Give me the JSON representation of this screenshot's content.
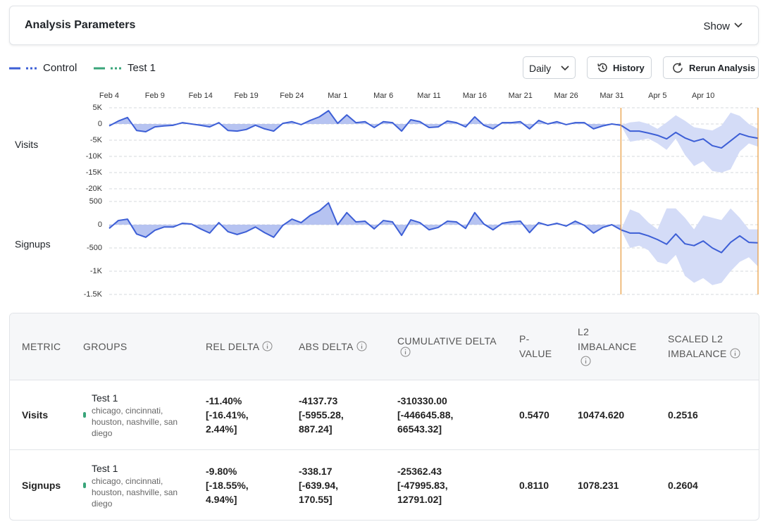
{
  "header": {
    "title": "Analysis Parameters",
    "toggle": "Show"
  },
  "legend": [
    {
      "name": "Control",
      "color": "#3d5fd6"
    },
    {
      "name": "Test 1",
      "color": "#3aa57a"
    }
  ],
  "controls": {
    "granularity": "Daily",
    "history": "History",
    "rerun": "Rerun Analysis"
  },
  "chart_data": [
    {
      "type": "line",
      "title": "Visits",
      "x": [
        "Feb 4",
        null,
        null,
        null,
        null,
        "Feb 9",
        null,
        null,
        null,
        null,
        "Feb 14",
        null,
        null,
        null,
        null,
        "Feb 19",
        null,
        null,
        null,
        null,
        "Feb 24",
        null,
        null,
        null,
        null,
        "Mar 1",
        null,
        null,
        null,
        null,
        "Mar 6",
        null,
        null,
        null,
        null,
        "Mar 11",
        null,
        null,
        null,
        null,
        "Mar 16",
        null,
        null,
        null,
        null,
        "Mar 21",
        null,
        null,
        null,
        null,
        "Mar 26",
        null,
        null,
        null,
        null,
        "Mar 31",
        null,
        null,
        null,
        null,
        "Apr 5",
        null,
        null,
        null,
        null,
        "Apr 10",
        null,
        null,
        null,
        null,
        null,
        null
      ],
      "ylim": [
        -20000,
        5000
      ],
      "yticks": [
        {
          "value": 5000,
          "label": "5K"
        },
        0,
        {
          "value": -5000,
          "label": "-5K"
        },
        {
          "value": -10000,
          "label": "-10K"
        },
        {
          "value": -15000,
          "label": "-15K"
        },
        {
          "value": -20000,
          "label": "-20K"
        }
      ],
      "grid": true,
      "color": "#3d5fd6",
      "area_color": "#a9b9ef",
      "band_color": "#d4dcf7",
      "marker_color": "#e8993a",
      "values": [
        -600,
        900,
        2000,
        -2000,
        -2400,
        -900,
        -600,
        -400,
        400,
        0,
        -400,
        -900,
        400,
        -2000,
        -2200,
        -1700,
        -400,
        -1500,
        -2200,
        200,
        700,
        -200,
        1100,
        2200,
        4100,
        200,
        2800,
        400,
        700,
        -1100,
        700,
        400,
        -2200,
        1300,
        700,
        -1100,
        -900,
        900,
        400,
        -900,
        2200,
        -400,
        -1500,
        400,
        400,
        700,
        -1500,
        1100,
        0,
        700,
        -200,
        400,
        400,
        -1500,
        -600,
        0,
        -400,
        -2200,
        -2200,
        -2800,
        -3500,
        -4600,
        -2600,
        -4300,
        -5400,
        -4600,
        -6700,
        -7400,
        -5200,
        -3000,
        -3900,
        -4400
      ],
      "band_upper": [
        null,
        null,
        null,
        null,
        null,
        null,
        null,
        null,
        null,
        null,
        null,
        null,
        null,
        null,
        null,
        null,
        null,
        null,
        null,
        null,
        null,
        null,
        null,
        null,
        null,
        null,
        null,
        null,
        null,
        null,
        null,
        null,
        null,
        null,
        null,
        null,
        null,
        null,
        null,
        null,
        null,
        null,
        null,
        null,
        null,
        null,
        null,
        null,
        null,
        null,
        null,
        null,
        null,
        null,
        null,
        null,
        -400,
        500,
        800,
        0,
        -1500,
        500,
        2700,
        1000,
        -1000,
        -1500,
        -2000,
        -500,
        3500,
        2500,
        0,
        -1500
      ],
      "band_lower": [
        null,
        null,
        null,
        null,
        null,
        null,
        null,
        null,
        null,
        null,
        null,
        null,
        null,
        null,
        null,
        null,
        null,
        null,
        null,
        null,
        null,
        null,
        null,
        null,
        null,
        null,
        null,
        null,
        null,
        null,
        null,
        null,
        null,
        null,
        null,
        null,
        null,
        null,
        null,
        null,
        null,
        null,
        null,
        null,
        null,
        null,
        null,
        null,
        null,
        null,
        null,
        null,
        null,
        null,
        null,
        null,
        -400,
        -5500,
        -5000,
        -4500,
        -6000,
        -8000,
        -4500,
        -9500,
        -13000,
        -11500,
        -14500,
        -15000,
        -14000,
        -8500,
        -6000,
        -7000
      ]
    },
    {
      "type": "line",
      "title": "Signups",
      "ylim": [
        -1500,
        500
      ],
      "yticks": [
        500,
        0,
        -500,
        {
          "value": -1000,
          "label": "-1K"
        },
        {
          "value": -1500,
          "label": "-1.5K"
        }
      ],
      "grid": true,
      "color": "#3d5fd6",
      "area_color": "#a9b9ef",
      "band_color": "#d4dcf7",
      "marker_color": "#e8993a",
      "values": [
        -80,
        90,
        120,
        -200,
        -270,
        -120,
        -50,
        -50,
        30,
        15,
        -90,
        -180,
        45,
        -150,
        -210,
        -150,
        -50,
        -170,
        -270,
        -15,
        120,
        45,
        200,
        300,
        470,
        0,
        260,
        60,
        75,
        -90,
        90,
        60,
        -230,
        105,
        45,
        -110,
        -60,
        75,
        60,
        -80,
        260,
        15,
        -110,
        30,
        60,
        75,
        -170,
        45,
        -15,
        30,
        -30,
        75,
        -15,
        -180,
        -60,
        0,
        -110,
        -180,
        -180,
        -240,
        -320,
        -420,
        -200,
        -410,
        -450,
        -350,
        -500,
        -600,
        -380,
        -240,
        -380,
        -390
      ],
      "band_upper": [
        null,
        null,
        null,
        null,
        null,
        null,
        null,
        null,
        null,
        null,
        null,
        null,
        null,
        null,
        null,
        null,
        null,
        null,
        null,
        null,
        null,
        null,
        null,
        null,
        null,
        null,
        null,
        null,
        null,
        null,
        null,
        null,
        null,
        null,
        null,
        null,
        null,
        null,
        null,
        null,
        null,
        null,
        null,
        null,
        null,
        null,
        null,
        null,
        null,
        null,
        null,
        null,
        null,
        null,
        null,
        null,
        -110,
        330,
        250,
        50,
        -100,
        350,
        350,
        150,
        -100,
        200,
        150,
        100,
        350,
        150,
        -100,
        -100
      ],
      "band_lower": [
        null,
        null,
        null,
        null,
        null,
        null,
        null,
        null,
        null,
        null,
        null,
        null,
        null,
        null,
        null,
        null,
        null,
        null,
        null,
        null,
        null,
        null,
        null,
        null,
        null,
        null,
        null,
        null,
        null,
        null,
        null,
        null,
        null,
        null,
        null,
        null,
        null,
        null,
        null,
        null,
        null,
        null,
        null,
        null,
        null,
        null,
        null,
        null,
        null,
        null,
        null,
        null,
        null,
        null,
        null,
        null,
        -110,
        -500,
        -450,
        -550,
        -800,
        -850,
        -650,
        -1100,
        -1250,
        -1150,
        -1300,
        -1250,
        -1000,
        -800,
        -700,
        -900
      ]
    }
  ],
  "table": {
    "columns": [
      "METRIC",
      "GROUPS",
      "REL DELTA",
      "ABS DELTA",
      "CUMULATIVE DELTA",
      "P-VALUE",
      "L2 IMBALANCE",
      "SCALED L2 IMBALANCE"
    ],
    "rows": [
      {
        "metric": "Visits",
        "group": "Test 1",
        "group_detail": "chicago, cincinnati, houston, nashville, san diego",
        "rel_delta": "-11.40%",
        "rel_delta_ci": "[-16.41%, 2.44%]",
        "abs_delta": "-4137.73",
        "abs_delta_ci": "[-5955.28, 887.24]",
        "cumulative_delta": "-310330.00",
        "cumulative_delta_ci": "[-446645.88, 66543.32]",
        "p_value": "0.5470",
        "l2_imbalance": "10474.620",
        "scaled_l2_imbalance": "0.2516"
      },
      {
        "metric": "Signups",
        "group": "Test 1",
        "group_detail": "chicago, cincinnati, houston, nashville, san diego",
        "rel_delta": "-9.80%",
        "rel_delta_ci": "[-18.55%, 4.94%]",
        "abs_delta": "-338.17",
        "abs_delta_ci": "[-639.94, 170.55]",
        "cumulative_delta": "-25362.43",
        "cumulative_delta_ci": "[-47995.83, 12791.02]",
        "p_value": "0.8110",
        "l2_imbalance": "1078.231",
        "scaled_l2_imbalance": "0.2604"
      }
    ]
  }
}
